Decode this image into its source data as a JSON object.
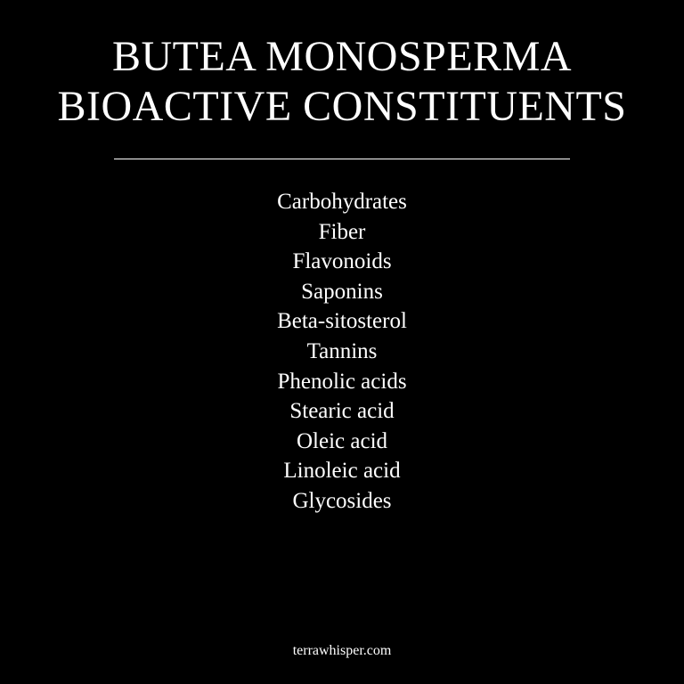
{
  "heading": {
    "line1": "BUTEA MONOSPERMA",
    "line2": "BIOACTIVE CONSTITUENTS"
  },
  "constituents": [
    "Carbohydrates",
    "Fiber",
    "Flavonoids",
    "Saponins",
    "Beta-sitosterol",
    "Tannins",
    "Phenolic acids",
    "Stearic acid",
    "Oleic acid",
    "Linoleic acid",
    "Glycosides"
  ],
  "footer": {
    "site": "terrawhisper.com"
  },
  "colors": {
    "background": "#000000",
    "text": "#ffffff"
  }
}
